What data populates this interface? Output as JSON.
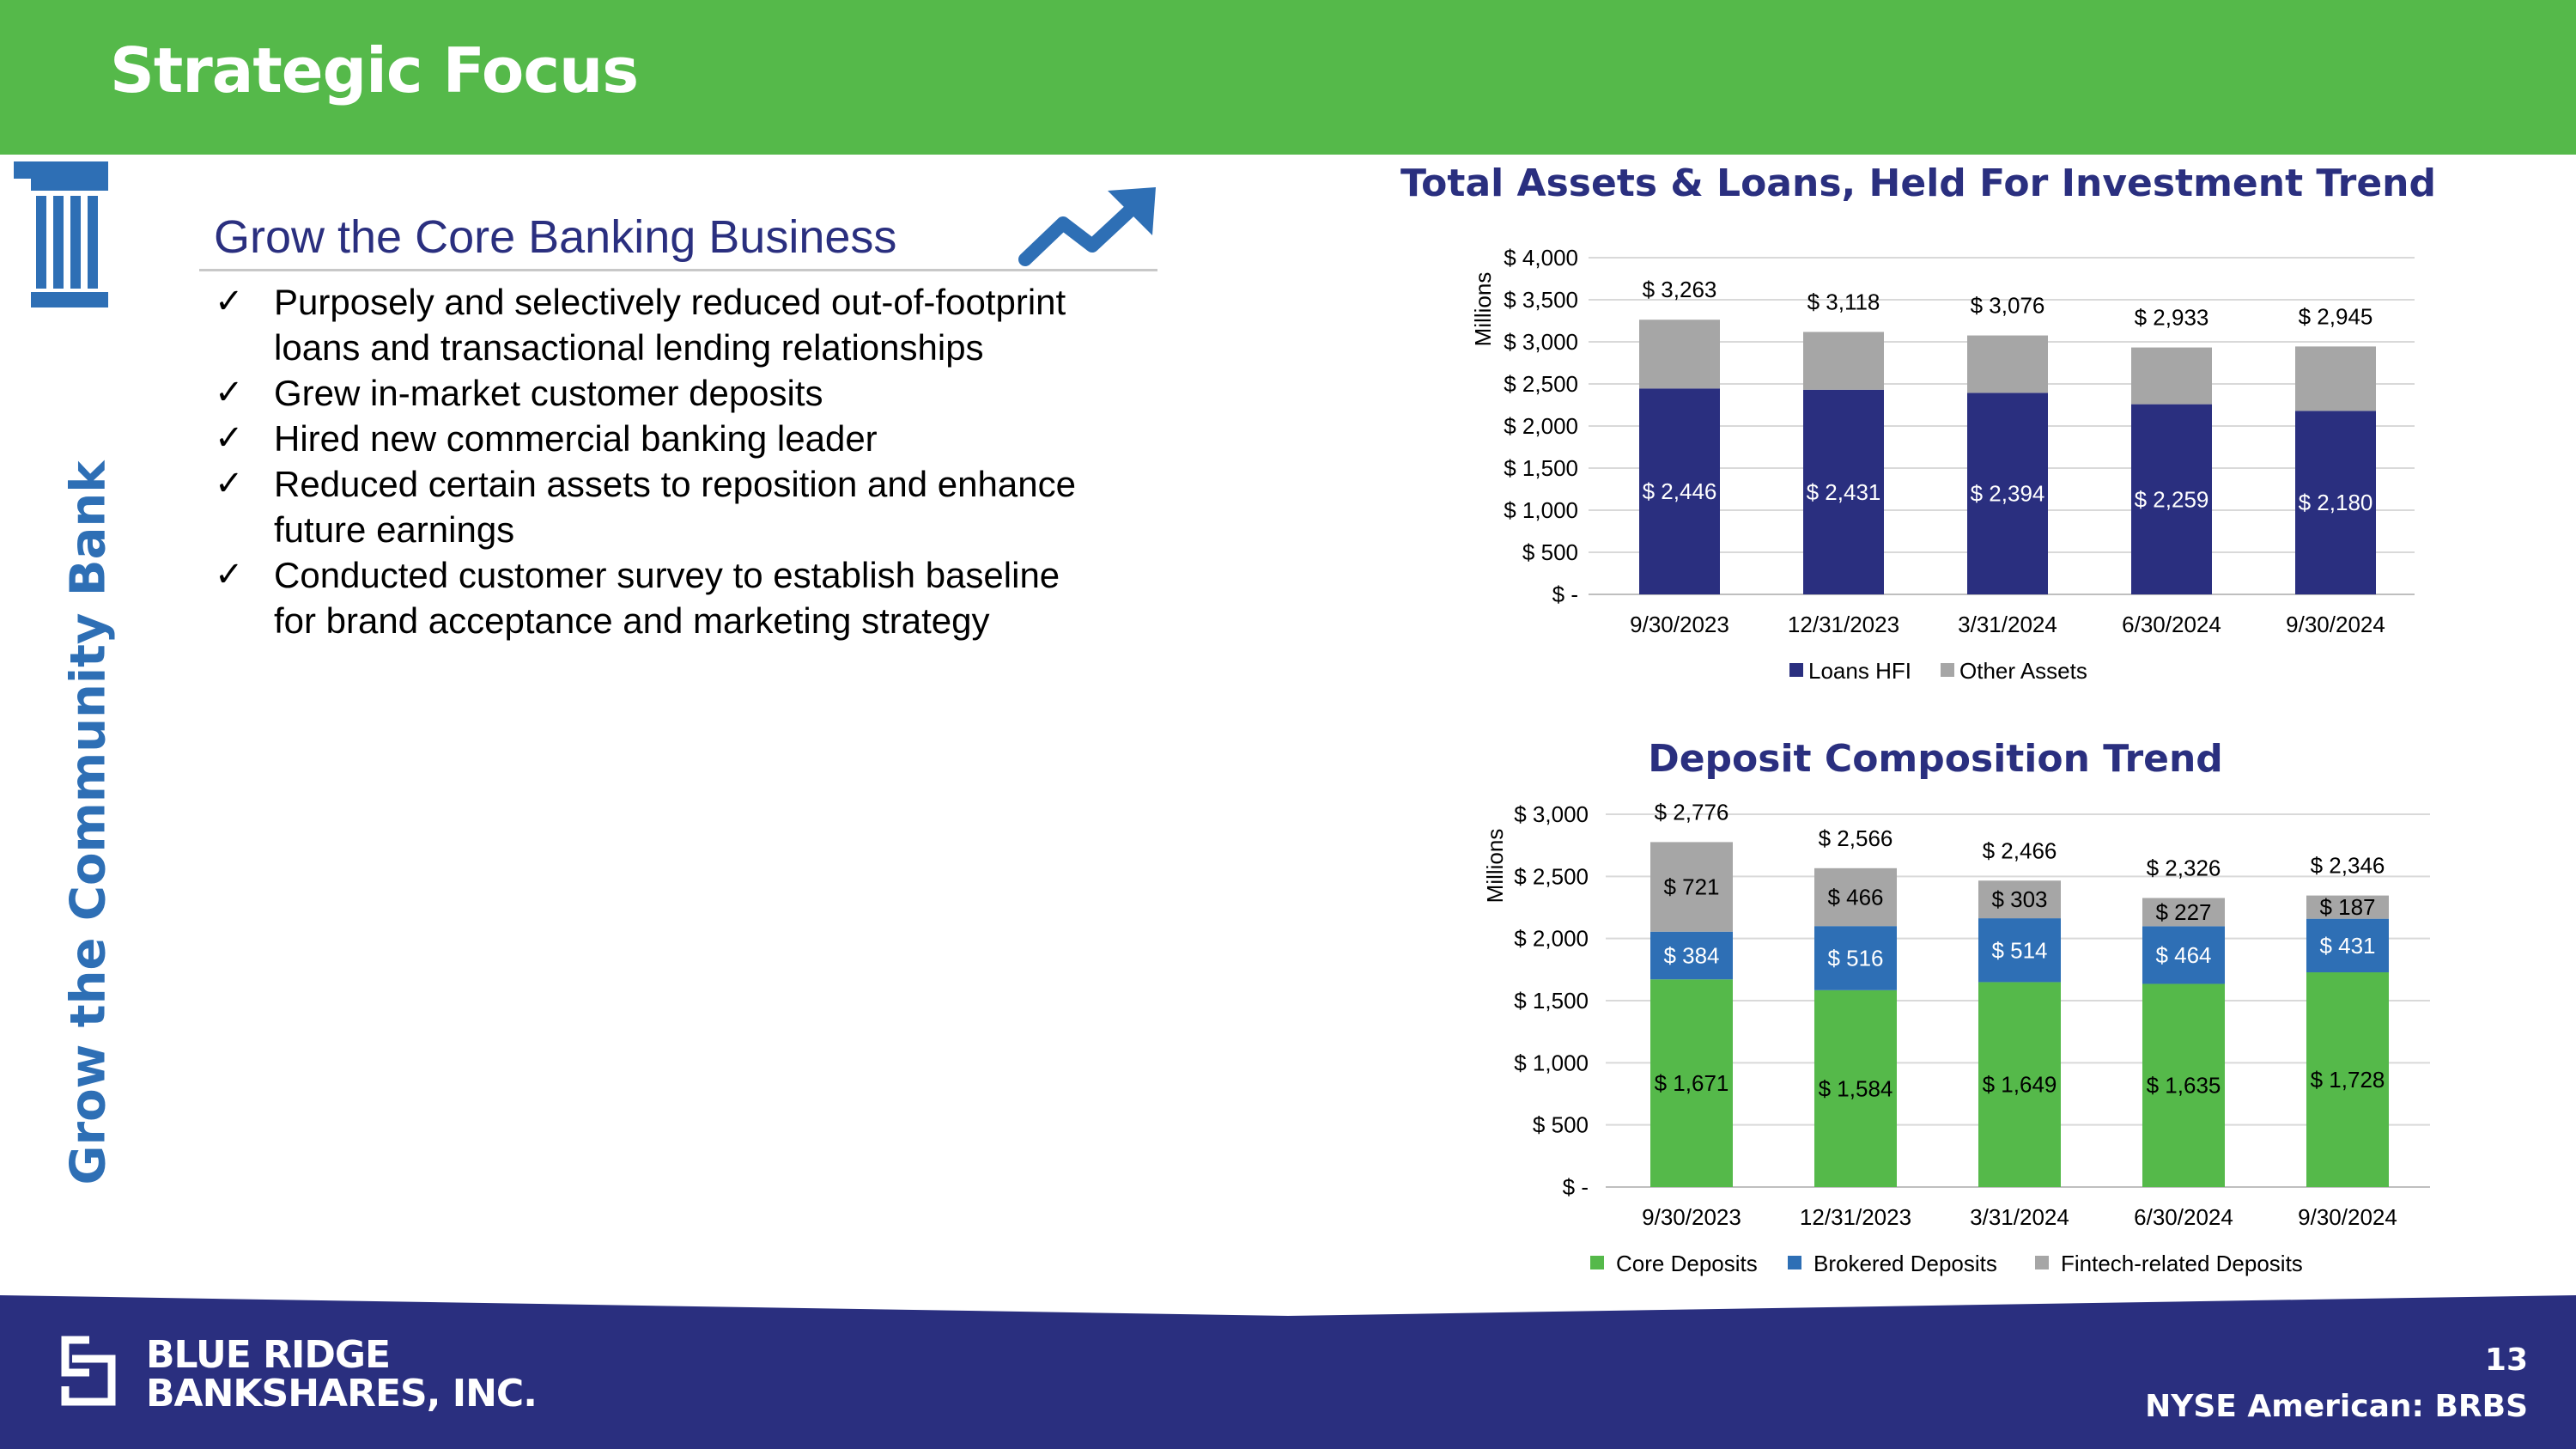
{
  "header": {
    "title": "Strategic Focus"
  },
  "sidebar": {
    "vertical_label": "Grow the Community Bank",
    "icon": "column-pillar-icon"
  },
  "content": {
    "heading": "Grow the Core Banking Business",
    "trend_icon": "trend-up-arrow-icon",
    "bullets": [
      {
        "check": "✓",
        "lines": [
          "Purposely and selectively reduced out-of-footprint",
          "loans and transactional lending relationships"
        ]
      },
      {
        "check": "✓",
        "lines": [
          "Grew in-market customer deposits"
        ]
      },
      {
        "check": "✓",
        "lines": [
          "Hired new commercial banking leader"
        ]
      },
      {
        "check": "✓",
        "lines": [
          "Reduced certain assets to reposition and enhance",
          "future earnings"
        ]
      },
      {
        "check": "✓",
        "lines": [
          "Conducted customer survey to establish baseline",
          "for brand acceptance and marketing strategy"
        ]
      }
    ]
  },
  "chart_data": [
    {
      "type": "bar",
      "stacked": true,
      "title": "Total Assets & Loans, Held For Investment Trend",
      "ylabel": "Millions",
      "ylim": [
        0,
        4000
      ],
      "yticks": [
        0,
        500,
        1000,
        1500,
        2000,
        2500,
        3000,
        3500,
        4000
      ],
      "ytick_labels": [
        "$ -",
        "$ 500",
        "$ 1,000",
        "$ 1,500",
        "$ 2,000",
        "$ 2,500",
        "$ 3,000",
        "$ 3,500",
        "$ 4,000"
      ],
      "grid": true,
      "legend_position": "bottom",
      "categories": [
        "9/30/2023",
        "12/31/2023",
        "3/31/2024",
        "6/30/2024",
        "9/30/2024"
      ],
      "series": [
        {
          "name": "Loans HFI",
          "color": "#2a2f7f",
          "values": [
            2446,
            2431,
            2394,
            2259,
            2180
          ],
          "labels": [
            "$ 2,446",
            "$ 2,431",
            "$ 2,394",
            "$ 2,259",
            "$ 2,180"
          ],
          "label_color": "#ffffff"
        },
        {
          "name": "Other Assets",
          "color": "#a6a6a6",
          "values": [
            817,
            687,
            682,
            674,
            765
          ],
          "labels": []
        }
      ],
      "totals": [
        3263,
        3118,
        3076,
        2933,
        2945
      ],
      "total_labels": [
        "$ 3,263",
        "$ 3,118",
        "$ 3,076",
        "$ 2,933",
        "$ 2,945"
      ]
    },
    {
      "type": "bar",
      "stacked": true,
      "title": "Deposit Composition Trend",
      "ylabel": "Millions",
      "ylim": [
        0,
        3000
      ],
      "yticks": [
        0,
        500,
        1000,
        1500,
        2000,
        2500,
        3000
      ],
      "ytick_labels": [
        "$ -",
        "$ 500",
        "$ 1,000",
        "$ 1,500",
        "$ 2,000",
        "$ 2,500",
        "$ 3,000"
      ],
      "grid": true,
      "legend_position": "bottom",
      "categories": [
        "9/30/2023",
        "12/31/2023",
        "3/31/2024",
        "6/30/2024",
        "9/30/2024"
      ],
      "series": [
        {
          "name": "Core Deposits",
          "color": "#55b94a",
          "values": [
            1671,
            1584,
            1649,
            1635,
            1728
          ],
          "labels": [
            "$ 1,671",
            "$ 1,584",
            "$ 1,649",
            "$ 1,635",
            "$ 1,728"
          ],
          "label_color": "#000000"
        },
        {
          "name": "Brokered Deposits",
          "color": "#2e6fb5",
          "values": [
            384,
            516,
            514,
            464,
            431
          ],
          "labels": [
            "$ 384",
            "$ 516",
            "$ 514",
            "$ 464",
            "$ 431"
          ],
          "label_color": "#ffffff"
        },
        {
          "name": "Fintech-related Deposits",
          "color": "#a6a6a6",
          "values": [
            721,
            466,
            303,
            227,
            187
          ],
          "labels": [
            "$ 721",
            "$ 466",
            "$ 303",
            "$ 227",
            "$ 187"
          ],
          "label_color": "#000000"
        }
      ],
      "totals": [
        2776,
        2566,
        2466,
        2326,
        2346
      ],
      "total_labels": [
        "$ 2,776",
        "$ 2,566",
        "$ 2,466",
        "$ 2,326",
        "$ 2,346"
      ]
    }
  ],
  "footer": {
    "logo_line1": "BLUE RIDGE",
    "logo_line2": "BANKSHARES, INC.",
    "logo_icon": "blue-ridge-logo-icon",
    "page_number": "13",
    "ticker": "NYSE American: BRBS"
  },
  "colors": {
    "header_green": "#55b94a",
    "footer_navy": "#2a2f7f",
    "accent_blue": "#2e6fb5"
  }
}
